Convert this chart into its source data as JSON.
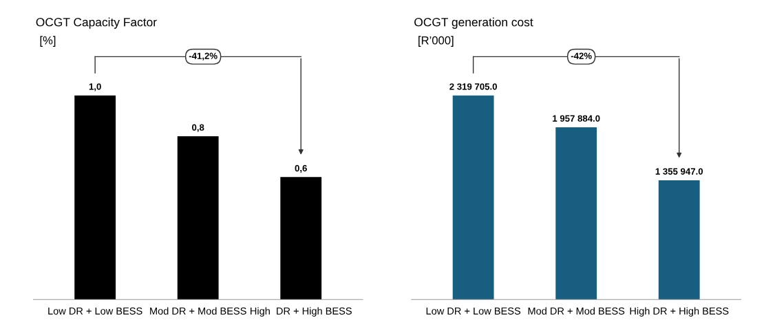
{
  "chart_data": [
    {
      "type": "bar",
      "title": "OCGT Capacity Factor",
      "subtitle": "[%]",
      "categories": [
        "Low DR + Low BESS",
        "Mod DR + Mod BESS",
        "High  DR + High BESS"
      ],
      "values": [
        1.0,
        0.8,
        0.6
      ],
      "value_labels": [
        "1,0",
        "0,8",
        "0,6"
      ],
      "color": "#000000",
      "annotations": [
        "-41,2%"
      ],
      "tick_labels": "x",
      "grid": false,
      "legend": false
    },
    {
      "type": "bar",
      "title": "OCGT generation cost",
      "subtitle": "[R’000]",
      "categories": [
        "Low DR + Low BESS",
        "Mod DR + Mod BESS",
        "High DR + High BESS"
      ],
      "values": [
        2319705.0,
        1957884.0,
        1355947.0
      ],
      "value_labels": [
        "2 319 705.0",
        "1 957 884.0",
        "1 355 947.0"
      ],
      "color": "#175e80",
      "annotations": [
        "-42%"
      ],
      "tick_labels": "x",
      "grid": false,
      "legend": false
    }
  ]
}
